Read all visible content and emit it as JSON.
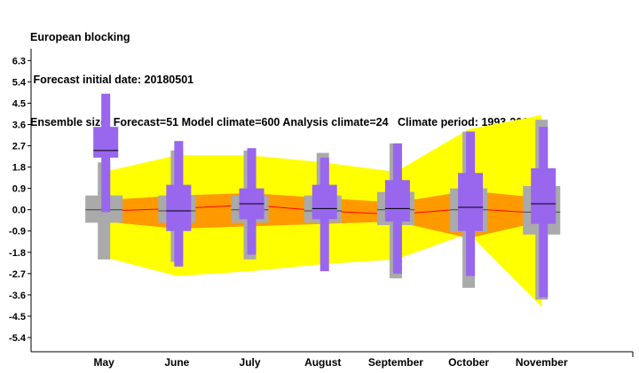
{
  "chart_data": {
    "type": "box",
    "title": "European blocking",
    "subtitle_lines": [
      " Forecast initial date: 20180501",
      "Ensemble size: Forecast=51 Model climate=600 Analysis climate=24   Climate period: 1993-2016"
    ],
    "categories": [
      "May",
      "June",
      "July",
      "August",
      "September",
      "October",
      "November"
    ],
    "y_ticks": [
      "6.3",
      "5.4",
      "4.5",
      "3.6",
      "2.7",
      "1.8",
      "0.9",
      "0.0",
      "-0.9",
      "-1.8",
      "-2.7",
      "-3.6",
      "-4.5",
      "-5.4"
    ],
    "ylim": [
      -6.0,
      6.8
    ],
    "colors": {
      "model_climate_outer": "#ffff00",
      "model_climate_inner": "#ff9900",
      "model_climate_median": "#ff0000",
      "forecast": "#9966ee",
      "forecast_median": "#000000",
      "analysis_climate": "#aaaaaa",
      "analysis_median": "#444444"
    },
    "model_climate": {
      "outer_low": [
        -2.0,
        -2.8,
        -2.6,
        -2.3,
        -2.1,
        -1.0,
        -4.1
      ],
      "outer_high": [
        1.6,
        2.3,
        2.3,
        2.0,
        1.6,
        3.4,
        4.0
      ],
      "inner_low": [
        -0.5,
        -0.8,
        -0.7,
        -0.6,
        -0.5,
        -1.2,
        -0.5
      ],
      "inner_high": [
        0.4,
        0.6,
        0.7,
        0.5,
        0.3,
        0.8,
        0.5
      ],
      "median": [
        -0.05,
        0.05,
        0.2,
        -0.05,
        -0.2,
        0.05,
        -0.15
      ]
    },
    "forecast": {
      "whisker_low": [
        -0.1,
        -2.4,
        -1.9,
        -2.6,
        -2.7,
        -2.8,
        -3.7
      ],
      "box_low": [
        2.2,
        -0.9,
        -0.4,
        -0.4,
        -0.5,
        -0.9,
        -0.6
      ],
      "median": [
        2.5,
        -0.05,
        0.25,
        0.05,
        0.05,
        0.1,
        0.25
      ],
      "box_high": [
        3.5,
        1.05,
        0.9,
        1.05,
        1.25,
        1.55,
        1.75
      ],
      "whisker_high": [
        4.9,
        2.9,
        2.6,
        2.2,
        2.8,
        3.3,
        3.5
      ]
    },
    "analysis_climate": {
      "whisker_low": [
        -2.1,
        -2.2,
        -2.1,
        -0.6,
        -2.9,
        -3.3,
        -3.8
      ],
      "box_low": [
        -0.55,
        -0.55,
        -0.55,
        -0.55,
        -0.65,
        -0.95,
        -1.05
      ],
      "median": [
        0.0,
        -0.05,
        0.0,
        -0.05,
        0.0,
        0.0,
        -0.1
      ],
      "box_high": [
        0.6,
        0.6,
        0.6,
        0.6,
        0.75,
        0.9,
        1.0
      ],
      "whisker_high": [
        2.0,
        2.5,
        2.5,
        2.4,
        2.8,
        3.3,
        3.8
      ]
    },
    "grid": false,
    "legend": "none"
  }
}
